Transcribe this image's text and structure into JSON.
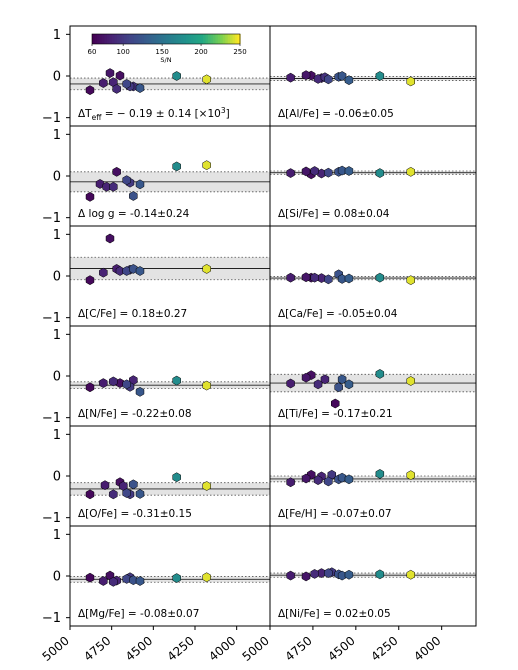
{
  "chart_data": {
    "type": "scatter",
    "layout": "6 rows x 2 columns of panels sharing x and y axes",
    "x_axis": {
      "range": [
        5000,
        3800
      ],
      "inverted": true,
      "ticks": [
        5000,
        4750,
        4500,
        4250,
        4000
      ],
      "tick_labels": [
        "5000",
        "4750",
        "4500",
        "4250",
        "4000"
      ]
    },
    "y_axis": {
      "range": [
        -1.2,
        1.2
      ],
      "ticks": [
        -1,
        0,
        1
      ],
      "tick_labels": [
        "−1",
        "0",
        "1"
      ]
    },
    "colorbar": {
      "label": "S/N",
      "range": [
        60,
        250
      ],
      "ticks": [
        60,
        100,
        150,
        200,
        250
      ],
      "tick_labels": [
        "60",
        "100",
        "150",
        "200",
        "250"
      ],
      "colormap": "viridis",
      "location": "upper-left inside first panel"
    },
    "shading": "grey band shows mean ± standard deviation; solid line = mean, dotted lines = band edges",
    "panels": [
      {
        "label": "ΔT_eff = − 0.19 ± 0.14 [×10³]",
        "label_parts": {
          "pre": "ΔT",
          "sub": "eff",
          "post": " = − 0.19 ± 0.14 [×10",
          "sup": "3",
          "end": "]"
        },
        "mean": -0.19,
        "std": 0.14,
        "points": [
          {
            "x": 4880,
            "y": -0.34,
            "sn": 65
          },
          {
            "x": 4800,
            "y": -0.17,
            "sn": 80
          },
          {
            "x": 4760,
            "y": 0.07,
            "sn": 75
          },
          {
            "x": 4740,
            "y": -0.15,
            "sn": 85
          },
          {
            "x": 4720,
            "y": -0.31,
            "sn": 90
          },
          {
            "x": 4700,
            "y": 0.01,
            "sn": 70
          },
          {
            "x": 4660,
            "y": -0.19,
            "sn": 110
          },
          {
            "x": 4640,
            "y": -0.25,
            "sn": 100
          },
          {
            "x": 4620,
            "y": -0.25,
            "sn": 95
          },
          {
            "x": 4580,
            "y": -0.29,
            "sn": 125
          },
          {
            "x": 4360,
            "y": 0.0,
            "sn": 175
          },
          {
            "x": 4180,
            "y": -0.08,
            "sn": 245
          }
        ]
      },
      {
        "label": "Δ[Al/Fe] = -0.06±0.05",
        "mean": -0.06,
        "std": 0.05,
        "points": [
          {
            "x": 4880,
            "y": -0.04,
            "sn": 80
          },
          {
            "x": 4790,
            "y": 0.02,
            "sn": 75
          },
          {
            "x": 4760,
            "y": 0.01,
            "sn": 70
          },
          {
            "x": 4720,
            "y": -0.07,
            "sn": 90
          },
          {
            "x": 4700,
            "y": -0.05,
            "sn": 85
          },
          {
            "x": 4680,
            "y": -0.03,
            "sn": 95
          },
          {
            "x": 4660,
            "y": -0.08,
            "sn": 110
          },
          {
            "x": 4600,
            "y": -0.02,
            "sn": 120
          },
          {
            "x": 4580,
            "y": 0.0,
            "sn": 125
          },
          {
            "x": 4540,
            "y": -0.1,
            "sn": 130
          },
          {
            "x": 4360,
            "y": 0.0,
            "sn": 175
          },
          {
            "x": 4180,
            "y": -0.13,
            "sn": 245
          }
        ]
      },
      {
        "label": "Δ log g = -0.14±0.24",
        "mean": -0.14,
        "std": 0.24,
        "points": [
          {
            "x": 4880,
            "y": -0.5,
            "sn": 65
          },
          {
            "x": 4820,
            "y": -0.19,
            "sn": 80
          },
          {
            "x": 4780,
            "y": -0.26,
            "sn": 85
          },
          {
            "x": 4740,
            "y": -0.26,
            "sn": 90
          },
          {
            "x": 4720,
            "y": 0.1,
            "sn": 70
          },
          {
            "x": 4660,
            "y": -0.1,
            "sn": 110
          },
          {
            "x": 4640,
            "y": -0.16,
            "sn": 100
          },
          {
            "x": 4620,
            "y": -0.48,
            "sn": 120
          },
          {
            "x": 4580,
            "y": -0.2,
            "sn": 125
          },
          {
            "x": 4360,
            "y": 0.23,
            "sn": 175
          },
          {
            "x": 4180,
            "y": 0.26,
            "sn": 245
          }
        ]
      },
      {
        "label": "Δ[Si/Fe] = 0.08±0.04",
        "mean": 0.08,
        "std": 0.04,
        "points": [
          {
            "x": 4880,
            "y": 0.07,
            "sn": 80
          },
          {
            "x": 4790,
            "y": 0.11,
            "sn": 75
          },
          {
            "x": 4760,
            "y": 0.04,
            "sn": 70
          },
          {
            "x": 4740,
            "y": 0.12,
            "sn": 90
          },
          {
            "x": 4700,
            "y": 0.06,
            "sn": 85
          },
          {
            "x": 4660,
            "y": 0.08,
            "sn": 110
          },
          {
            "x": 4600,
            "y": 0.1,
            "sn": 120
          },
          {
            "x": 4580,
            "y": 0.13,
            "sn": 125
          },
          {
            "x": 4540,
            "y": 0.12,
            "sn": 130
          },
          {
            "x": 4360,
            "y": 0.07,
            "sn": 175
          },
          {
            "x": 4180,
            "y": 0.1,
            "sn": 245
          }
        ]
      },
      {
        "label": "Δ[C/Fe] = 0.18±0.27",
        "mean": 0.18,
        "std": 0.27,
        "points": [
          {
            "x": 4880,
            "y": -0.1,
            "sn": 65
          },
          {
            "x": 4800,
            "y": 0.08,
            "sn": 85
          },
          {
            "x": 4760,
            "y": 0.9,
            "sn": 70
          },
          {
            "x": 4720,
            "y": 0.17,
            "sn": 80
          },
          {
            "x": 4700,
            "y": 0.12,
            "sn": 90
          },
          {
            "x": 4660,
            "y": 0.12,
            "sn": 110
          },
          {
            "x": 4640,
            "y": 0.15,
            "sn": 100
          },
          {
            "x": 4620,
            "y": 0.17,
            "sn": 120
          },
          {
            "x": 4580,
            "y": 0.12,
            "sn": 125
          },
          {
            "x": 4180,
            "y": 0.17,
            "sn": 245
          }
        ]
      },
      {
        "label": "Δ[Ca/Fe] = -0.05±0.04",
        "mean": -0.05,
        "std": 0.04,
        "points": [
          {
            "x": 4880,
            "y": -0.04,
            "sn": 80
          },
          {
            "x": 4790,
            "y": -0.03,
            "sn": 75
          },
          {
            "x": 4760,
            "y": -0.04,
            "sn": 70
          },
          {
            "x": 4740,
            "y": -0.04,
            "sn": 90
          },
          {
            "x": 4700,
            "y": -0.05,
            "sn": 85
          },
          {
            "x": 4660,
            "y": -0.08,
            "sn": 110
          },
          {
            "x": 4600,
            "y": 0.04,
            "sn": 120
          },
          {
            "x": 4580,
            "y": -0.07,
            "sn": 125
          },
          {
            "x": 4540,
            "y": -0.06,
            "sn": 130
          },
          {
            "x": 4360,
            "y": -0.04,
            "sn": 175
          },
          {
            "x": 4180,
            "y": -0.1,
            "sn": 245
          }
        ]
      },
      {
        "label": "Δ[N/Fe] = -0.22±0.08",
        "mean": -0.22,
        "std": 0.08,
        "points": [
          {
            "x": 4880,
            "y": -0.27,
            "sn": 65
          },
          {
            "x": 4800,
            "y": -0.17,
            "sn": 80
          },
          {
            "x": 4740,
            "y": -0.13,
            "sn": 90
          },
          {
            "x": 4700,
            "y": -0.17,
            "sn": 70
          },
          {
            "x": 4660,
            "y": -0.2,
            "sn": 110
          },
          {
            "x": 4640,
            "y": -0.26,
            "sn": 100
          },
          {
            "x": 4620,
            "y": -0.1,
            "sn": 85
          },
          {
            "x": 4580,
            "y": -0.38,
            "sn": 125
          },
          {
            "x": 4360,
            "y": -0.11,
            "sn": 175
          },
          {
            "x": 4180,
            "y": -0.23,
            "sn": 245
          }
        ]
      },
      {
        "label": "Δ[Ti/Fe] = -0.17±0.21",
        "mean": -0.17,
        "std": 0.21,
        "points": [
          {
            "x": 4880,
            "y": -0.18,
            "sn": 80
          },
          {
            "x": 4790,
            "y": -0.04,
            "sn": 75
          },
          {
            "x": 4760,
            "y": 0.02,
            "sn": 70
          },
          {
            "x": 4720,
            "y": -0.2,
            "sn": 90
          },
          {
            "x": 4680,
            "y": -0.08,
            "sn": 85
          },
          {
            "x": 4620,
            "y": -0.66,
            "sn": 65
          },
          {
            "x": 4600,
            "y": -0.27,
            "sn": 120
          },
          {
            "x": 4580,
            "y": -0.08,
            "sn": 125
          },
          {
            "x": 4540,
            "y": -0.2,
            "sn": 130
          },
          {
            "x": 4360,
            "y": 0.05,
            "sn": 175
          },
          {
            "x": 4180,
            "y": -0.12,
            "sn": 245
          }
        ]
      },
      {
        "label": "Δ[O/Fe] = -0.31±0.15",
        "mean": -0.31,
        "std": 0.15,
        "points": [
          {
            "x": 4880,
            "y": -0.44,
            "sn": 65
          },
          {
            "x": 4790,
            "y": -0.22,
            "sn": 80
          },
          {
            "x": 4740,
            "y": -0.44,
            "sn": 90
          },
          {
            "x": 4700,
            "y": -0.15,
            "sn": 70
          },
          {
            "x": 4680,
            "y": -0.24,
            "sn": 85
          },
          {
            "x": 4660,
            "y": -0.41,
            "sn": 110
          },
          {
            "x": 4640,
            "y": -0.44,
            "sn": 100
          },
          {
            "x": 4620,
            "y": -0.2,
            "sn": 120
          },
          {
            "x": 4580,
            "y": -0.43,
            "sn": 125
          },
          {
            "x": 4360,
            "y": -0.03,
            "sn": 175
          },
          {
            "x": 4180,
            "y": -0.24,
            "sn": 245
          }
        ]
      },
      {
        "label": "Δ[Fe/H] = -0.07±0.07",
        "mean": -0.07,
        "std": 0.07,
        "points": [
          {
            "x": 4880,
            "y": -0.15,
            "sn": 80
          },
          {
            "x": 4790,
            "y": -0.06,
            "sn": 75
          },
          {
            "x": 4760,
            "y": 0.03,
            "sn": 70
          },
          {
            "x": 4720,
            "y": -0.1,
            "sn": 90
          },
          {
            "x": 4700,
            "y": -0.01,
            "sn": 85
          },
          {
            "x": 4660,
            "y": -0.13,
            "sn": 110
          },
          {
            "x": 4640,
            "y": 0.03,
            "sn": 100
          },
          {
            "x": 4600,
            "y": -0.08,
            "sn": 120
          },
          {
            "x": 4580,
            "y": -0.04,
            "sn": 125
          },
          {
            "x": 4540,
            "y": -0.08,
            "sn": 130
          },
          {
            "x": 4360,
            "y": 0.05,
            "sn": 175
          },
          {
            "x": 4180,
            "y": 0.02,
            "sn": 245
          }
        ]
      },
      {
        "label": "Δ[Mg/Fe] = -0.08±0.07",
        "mean": -0.08,
        "std": 0.07,
        "points": [
          {
            "x": 4880,
            "y": -0.04,
            "sn": 65
          },
          {
            "x": 4800,
            "y": -0.12,
            "sn": 80
          },
          {
            "x": 4760,
            "y": 0.01,
            "sn": 70
          },
          {
            "x": 4740,
            "y": -0.14,
            "sn": 90
          },
          {
            "x": 4720,
            "y": -0.11,
            "sn": 85
          },
          {
            "x": 4660,
            "y": -0.07,
            "sn": 110
          },
          {
            "x": 4640,
            "y": -0.03,
            "sn": 100
          },
          {
            "x": 4620,
            "y": -0.1,
            "sn": 120
          },
          {
            "x": 4580,
            "y": -0.12,
            "sn": 125
          },
          {
            "x": 4360,
            "y": -0.05,
            "sn": 175
          },
          {
            "x": 4180,
            "y": -0.03,
            "sn": 245
          }
        ]
      },
      {
        "label": "Δ[Ni/Fe] = 0.02±0.05",
        "mean": 0.02,
        "std": 0.05,
        "points": [
          {
            "x": 4880,
            "y": 0.01,
            "sn": 80
          },
          {
            "x": 4790,
            "y": -0.01,
            "sn": 75
          },
          {
            "x": 4740,
            "y": 0.05,
            "sn": 90
          },
          {
            "x": 4700,
            "y": 0.07,
            "sn": 85
          },
          {
            "x": 4660,
            "y": 0.07,
            "sn": 110
          },
          {
            "x": 4640,
            "y": 0.09,
            "sn": 100
          },
          {
            "x": 4600,
            "y": 0.04,
            "sn": 120
          },
          {
            "x": 4580,
            "y": 0.01,
            "sn": 125
          },
          {
            "x": 4540,
            "y": 0.03,
            "sn": 130
          },
          {
            "x": 4360,
            "y": 0.04,
            "sn": 175
          },
          {
            "x": 4180,
            "y": 0.03,
            "sn": 245
          }
        ]
      }
    ]
  }
}
